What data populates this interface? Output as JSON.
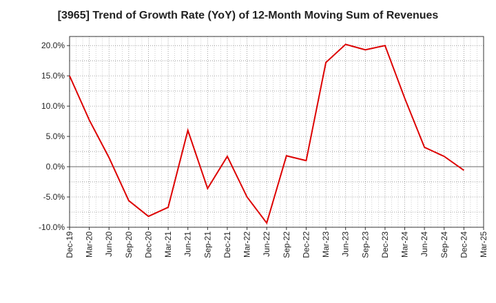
{
  "chart_data": {
    "type": "line",
    "title": "[3965]  Trend of Growth Rate (YoY) of 12-Month Moving Sum of Revenues",
    "xlabel": "",
    "ylabel": "",
    "x_tick_labels": [
      "Dec-19",
      "Mar-20",
      "Jun-20",
      "Sep-20",
      "Dec-20",
      "Mar-21",
      "Jun-21",
      "Sep-21",
      "Dec-21",
      "Mar-22",
      "Jun-22",
      "Sep-22",
      "Dec-22",
      "Mar-23",
      "Jun-23",
      "Sep-23",
      "Dec-23",
      "Mar-24",
      "Jun-24",
      "Sep-24",
      "Dec-24",
      "Mar-25"
    ],
    "y_tick_labels": [
      "20.0%",
      "15.0%",
      "10.0%",
      "5.0%",
      "0.0%",
      "-5.0%",
      "-10.0%"
    ],
    "y_ticks": [
      20,
      15,
      10,
      5,
      0,
      -5,
      -10
    ],
    "ylim": [
      -10,
      21.5
    ],
    "grid": true,
    "series": [
      {
        "color": "#dd0000",
        "x": [
          "Dec-19",
          "Mar-20",
          "Jun-20",
          "Sep-20",
          "Dec-20",
          "Mar-21",
          "Jun-21",
          "Sep-21",
          "Dec-21",
          "Mar-22",
          "Jun-22",
          "Sep-22",
          "Dec-22",
          "Mar-23",
          "Jun-23",
          "Sep-23",
          "Dec-23",
          "Mar-24",
          "Jun-24",
          "Sep-24",
          "Dec-24"
        ],
        "values": [
          15.0,
          7.7,
          1.5,
          -5.6,
          -8.2,
          -6.7,
          6.0,
          -3.6,
          1.7,
          -5.0,
          -9.3,
          1.8,
          1.0,
          17.2,
          20.2,
          19.3,
          20.0,
          11.3,
          3.2,
          1.7,
          -0.6
        ]
      }
    ]
  }
}
